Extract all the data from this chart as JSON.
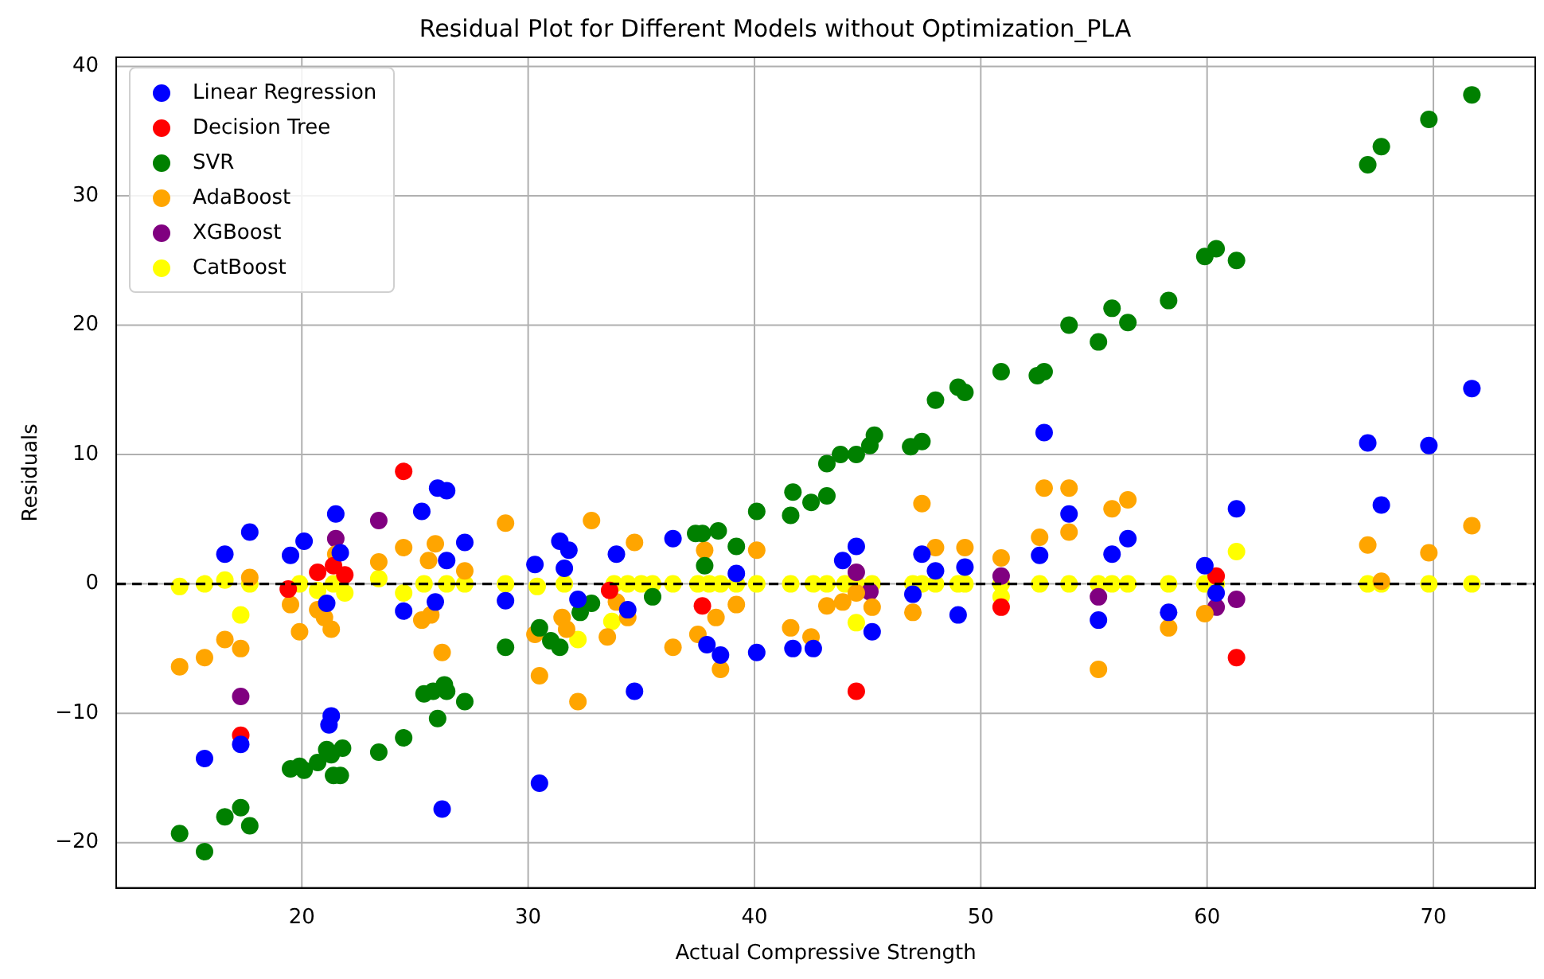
{
  "chart_data": {
    "type": "scatter",
    "title": "Residual Plot for Different Models without Optimization_PLA",
    "xlabel": "Actual Compressive Strength",
    "ylabel": "Residuals",
    "xlim": [
      11.8,
      74.5
    ],
    "ylim": [
      -23.5,
      40.7
    ],
    "xticks": [
      20,
      30,
      40,
      50,
      60,
      70
    ],
    "yticks": [
      {
        "value": -20,
        "label": "−20"
      },
      {
        "value": -10,
        "label": "−10"
      },
      0,
      10,
      20,
      30,
      40
    ],
    "grid": true,
    "legend": "top left",
    "marker": "circle",
    "ref_lines": [
      {
        "axis": "y",
        "value": 0,
        "color": "#000000",
        "line_style": "dashed"
      }
    ],
    "series": [
      {
        "name": "Linear Regression",
        "color": "#0000ff",
        "x": [
          16.6,
          17.7,
          15.7,
          17.3,
          19.5,
          20.1,
          21.1,
          21.5,
          21.7,
          21.3,
          21.2,
          24.5,
          25.3,
          26.0,
          26.4,
          26.4,
          25.9,
          27.2,
          26.2,
          29.0,
          30.3,
          31.4,
          31.8,
          31.6,
          30.5,
          32.2,
          33.9,
          34.4,
          34.7,
          36.4,
          37.9,
          38.5,
          39.2,
          40.1,
          41.6,
          41.7,
          42.6,
          43.9,
          44.5,
          45.2,
          47.4,
          48.0,
          49.0,
          49.3,
          52.6,
          52.8,
          53.9,
          47.0,
          55.8,
          56.5,
          55.2,
          58.3,
          59.9,
          60.4,
          61.3,
          67.1,
          67.7,
          69.8,
          71.7
        ],
        "values": [
          2.3,
          4.0,
          -13.5,
          -12.4,
          2.2,
          3.3,
          -1.5,
          5.4,
          2.4,
          -10.2,
          -10.9,
          -2.1,
          5.6,
          7.4,
          7.2,
          1.8,
          -1.4,
          3.2,
          -17.4,
          -1.3,
          1.5,
          3.3,
          2.6,
          1.2,
          -15.4,
          -1.2,
          2.3,
          -2.0,
          -8.3,
          3.5,
          -4.7,
          -5.5,
          0.8,
          -5.3,
          null,
          -5.0,
          -5.0,
          1.8,
          2.9,
          -3.7,
          2.3,
          1.0,
          -2.4,
          1.3,
          2.2,
          11.7,
          5.4,
          -0.8,
          2.3,
          3.5,
          -2.8,
          -2.2,
          1.4,
          -0.7,
          5.8,
          10.9,
          6.1,
          10.7,
          15.1
        ]
      },
      {
        "name": "Decision Tree",
        "color": "#ff0000",
        "x": [
          24.5,
          17.3,
          20.7,
          21.4,
          21.9,
          19.4,
          37.7,
          44.5,
          50.9,
          33.6,
          55.2,
          60.4,
          61.3
        ],
        "values": [
          8.7,
          -11.7,
          0.9,
          1.4,
          0.7,
          -0.4,
          -1.7,
          -8.3,
          -1.8,
          -0.5,
          null,
          0.6,
          -5.7
        ]
      },
      {
        "name": "SVR",
        "color": "#008000",
        "x": [
          14.6,
          15.7,
          16.6,
          17.3,
          17.7,
          19.5,
          19.9,
          20.1,
          20.7,
          21.1,
          21.3,
          21.8,
          21.4,
          21.7,
          23.4,
          24.5,
          25.4,
          25.8,
          26.3,
          26.4,
          26.0,
          27.2,
          29.0,
          30.5,
          31.4,
          32.3,
          31.0,
          32.8,
          35.5,
          37.4,
          37.7,
          38.4,
          37.8,
          39.2,
          40.1,
          41.6,
          41.7,
          42.5,
          43.2,
          43.2,
          43.8,
          44.5,
          45.1,
          45.3,
          46.9,
          47.4,
          48.0,
          49.0,
          49.3,
          50.9,
          52.5,
          52.8,
          53.9,
          55.2,
          55.8,
          56.5,
          58.3,
          59.9,
          60.4,
          61.3,
          67.1,
          67.7,
          69.8,
          71.7
        ],
        "values": [
          -19.3,
          -20.7,
          -18.0,
          -17.3,
          -18.7,
          -14.3,
          -14.1,
          -14.4,
          -13.8,
          -12.8,
          -13.2,
          -12.7,
          -14.8,
          -14.8,
          -13.0,
          -11.9,
          -8.5,
          -8.3,
          -7.8,
          -8.3,
          -10.4,
          -9.1,
          -4.9,
          -3.4,
          -4.9,
          -2.2,
          -4.4,
          -1.5,
          -1.0,
          3.9,
          3.9,
          4.1,
          1.4,
          2.9,
          5.6,
          5.3,
          7.1,
          6.3,
          6.8,
          9.3,
          10.0,
          10.0,
          10.7,
          11.5,
          10.6,
          11.0,
          14.2,
          15.2,
          14.8,
          16.4,
          16.1,
          16.4,
          20.0,
          18.7,
          21.3,
          20.2,
          21.9,
          25.3,
          25.9,
          25.0,
          32.4,
          33.8,
          35.9,
          37.8
        ]
      },
      {
        "name": "AdaBoost",
        "color": "#ffa500",
        "x": [
          14.6,
          15.7,
          16.6,
          17.3,
          17.7,
          19.5,
          19.9,
          20.7,
          21.0,
          21.3,
          21.5,
          23.4,
          24.5,
          25.9,
          25.6,
          25.3,
          25.7,
          26.2,
          27.2,
          29.0,
          30.5,
          30.3,
          32.2,
          31.5,
          31.7,
          32.8,
          34.7,
          33.9,
          33.5,
          34.4,
          36.4,
          37.5,
          38.3,
          38.5,
          39.2,
          37.8,
          40.1,
          41.6,
          42.5,
          43.2,
          43.9,
          44.5,
          45.2,
          47.0,
          47.4,
          48.0,
          49.3,
          50.9,
          52.6,
          52.8,
          53.9,
          53.9,
          55.2,
          55.8,
          56.5,
          58.3,
          59.9,
          67.1,
          69.8,
          71.7,
          67.7
        ],
        "values": [
          -6.4,
          -5.7,
          -4.3,
          -5.0,
          0.5,
          -1.6,
          -3.7,
          -2.0,
          -2.6,
          -3.5,
          2.3,
          1.7,
          2.8,
          3.1,
          1.8,
          -2.8,
          -2.4,
          -5.3,
          1.0,
          4.7,
          -7.1,
          -3.9,
          -9.1,
          -2.6,
          -3.5,
          4.9,
          3.2,
          -1.4,
          -4.1,
          -2.6,
          -4.9,
          -3.9,
          -2.6,
          -6.6,
          -1.6,
          2.6,
          2.6,
          -3.4,
          -4.1,
          -1.7,
          -1.4,
          -0.7,
          -1.8,
          -2.2,
          6.2,
          2.8,
          2.8,
          2.0,
          3.6,
          7.4,
          7.4,
          4.0,
          -6.6,
          5.8,
          6.5,
          -3.4,
          -2.3,
          3.0,
          2.4,
          4.5,
          0.2
        ]
      },
      {
        "name": "XGBoost",
        "color": "#800080",
        "x": [
          17.3,
          21.5,
          23.4,
          24.5,
          44.5,
          50.9,
          45.1,
          55.2,
          60.4,
          61.3
        ],
        "values": [
          -8.7,
          3.5,
          4.9,
          null,
          0.9,
          0.6,
          -0.6,
          -1.0,
          -1.8,
          -1.2
        ]
      },
      {
        "name": "CatBoost",
        "color": "#ffff00",
        "x": [
          14.6,
          15.7,
          16.6,
          17.3,
          17.7,
          19.5,
          19.9,
          20.7,
          21.4,
          21.9,
          23.4,
          24.5,
          25.4,
          26.4,
          27.2,
          29.0,
          30.4,
          31.6,
          32.2,
          33.8,
          34.4,
          35.0,
          35.5,
          36.4,
          37.5,
          38.0,
          38.5,
          39.2,
          40.1,
          41.6,
          42.6,
          43.2,
          44.0,
          44.5,
          45.2,
          47.0,
          47.4,
          48.0,
          49.0,
          49.3,
          50.9,
          52.6,
          53.9,
          33.7,
          44.5,
          45.1,
          50.9,
          55.2,
          55.8,
          56.5,
          58.3,
          59.9,
          60.4,
          61.3,
          67.1,
          67.7,
          69.8,
          71.7
        ],
        "values": [
          -0.2,
          0,
          0.3,
          -2.4,
          0,
          null,
          0,
          -0.5,
          0,
          -0.7,
          0.4,
          -0.7,
          0,
          0,
          0,
          0,
          -0.2,
          0,
          -4.3,
          0,
          0,
          0,
          0,
          0,
          0,
          0,
          0,
          0,
          0,
          0,
          0,
          0,
          0,
          0,
          0,
          0,
          0,
          0,
          0,
          0,
          0,
          0,
          0,
          -2.9,
          -3.0,
          null,
          -1.0,
          0,
          0,
          0,
          0,
          0,
          0,
          2.5,
          0,
          0,
          0,
          0
        ]
      }
    ]
  }
}
